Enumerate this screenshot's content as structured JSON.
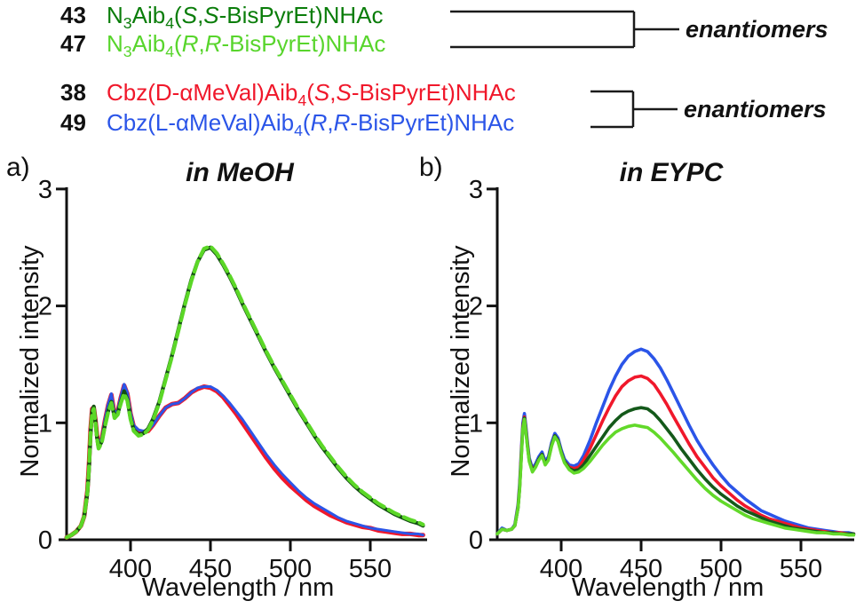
{
  "legend": {
    "rows": [
      {
        "number": "43",
        "color": "#0a7d0a",
        "segments": [
          {
            "t": "N"
          },
          {
            "t": "3",
            "sub": true
          },
          {
            "t": "Aib"
          },
          {
            "t": "4",
            "sub": true
          },
          {
            "t": "("
          },
          {
            "t": "S",
            "italic": true
          },
          {
            "t": ","
          },
          {
            "t": "S",
            "italic": true
          },
          {
            "t": "-BisPyrEt)NHAc"
          }
        ]
      },
      {
        "number": "47",
        "color": "#58d52c",
        "segments": [
          {
            "t": "N"
          },
          {
            "t": "3",
            "sub": true
          },
          {
            "t": "Aib"
          },
          {
            "t": "4",
            "sub": true
          },
          {
            "t": "("
          },
          {
            "t": "R",
            "italic": true
          },
          {
            "t": ","
          },
          {
            "t": "R",
            "italic": true
          },
          {
            "t": "-BisPyrEt)NHAc"
          }
        ]
      },
      {
        "number": "38",
        "color": "#f0182b",
        "segments": [
          {
            "t": "Cbz(D-"
          },
          {
            "t": "α"
          },
          {
            "t": "MeVal)Aib"
          },
          {
            "t": "4",
            "sub": true
          },
          {
            "t": "("
          },
          {
            "t": "S",
            "italic": true
          },
          {
            "t": ","
          },
          {
            "t": "S",
            "italic": true
          },
          {
            "t": "-BisPyrEt)NHAc"
          }
        ]
      },
      {
        "number": "49",
        "color": "#2b55e8",
        "segments": [
          {
            "t": "Cbz(L-"
          },
          {
            "t": "α"
          },
          {
            "t": "MeVal)Aib"
          },
          {
            "t": "4",
            "sub": true
          },
          {
            "t": "("
          },
          {
            "t": "R",
            "italic": true
          },
          {
            "t": ","
          },
          {
            "t": "R",
            "italic": true
          },
          {
            "t": "-BisPyrEt)NHAc"
          }
        ]
      }
    ],
    "enantiomers_top": "enantiomers",
    "enantiomers_bottom": "enantiomers"
  },
  "panels": {
    "a": {
      "letter": "a)"
    },
    "b": {
      "letter": "b)"
    }
  },
  "chart_data": [
    {
      "type": "line",
      "title": "in MeOH",
      "xlabel": "Wavelength / nm",
      "ylabel": "Normalized intensity",
      "xlim": [
        360,
        585
      ],
      "ylim": [
        0,
        3
      ],
      "xticks": [
        400,
        450,
        500,
        550
      ],
      "yticks": [
        0,
        1,
        2,
        3
      ],
      "x": [
        360,
        363,
        366,
        369,
        371,
        373,
        374,
        375,
        376,
        377,
        378,
        379,
        380,
        382,
        384,
        386,
        388,
        390,
        392,
        394,
        396,
        398,
        400,
        402,
        405,
        408,
        411,
        414,
        418,
        422,
        426,
        430,
        434,
        438,
        442,
        446,
        450,
        454,
        458,
        462,
        466,
        470,
        475,
        480,
        485,
        490,
        495,
        500,
        505,
        510,
        515,
        520,
        525,
        530,
        535,
        540,
        545,
        550,
        555,
        560,
        565,
        570,
        575,
        580,
        583
      ],
      "series": [
        {
          "name": "38",
          "compound": "Cbz(D-aMeVal)Aib4(S,S-BisPyrEt)NHAc",
          "color": "#f0182b",
          "width": 5,
          "dash": null,
          "values": [
            0.02,
            0.04,
            0.07,
            0.12,
            0.2,
            0.42,
            0.65,
            0.95,
            1.12,
            1.13,
            1.03,
            0.9,
            0.8,
            0.86,
            1.02,
            1.15,
            1.24,
            1.07,
            1.1,
            1.22,
            1.32,
            1.25,
            1.08,
            0.97,
            0.93,
            0.92,
            0.93,
            0.98,
            1.06,
            1.13,
            1.16,
            1.17,
            1.21,
            1.26,
            1.29,
            1.31,
            1.3,
            1.27,
            1.22,
            1.15,
            1.08,
            1.0,
            0.9,
            0.8,
            0.7,
            0.61,
            0.53,
            0.46,
            0.4,
            0.34,
            0.29,
            0.25,
            0.21,
            0.18,
            0.15,
            0.13,
            0.11,
            0.1,
            0.08,
            0.07,
            0.06,
            0.05,
            0.05,
            0.04,
            0.04
          ]
        },
        {
          "name": "49",
          "compound": "Cbz(L-aMeVal)Aib4(R,R-BisPyrEt)NHAc",
          "color": "#2b55e8",
          "width": 3,
          "dash": null,
          "values": [
            0.02,
            0.04,
            0.07,
            0.12,
            0.21,
            0.44,
            0.68,
            0.97,
            1.12,
            1.13,
            1.04,
            0.91,
            0.81,
            0.87,
            1.03,
            1.16,
            1.25,
            1.08,
            1.11,
            1.23,
            1.33,
            1.26,
            1.09,
            0.98,
            0.94,
            0.93,
            0.94,
            0.98,
            1.06,
            1.13,
            1.16,
            1.17,
            1.21,
            1.26,
            1.3,
            1.31,
            1.31,
            1.28,
            1.23,
            1.17,
            1.1,
            1.03,
            0.93,
            0.83,
            0.73,
            0.64,
            0.56,
            0.49,
            0.42,
            0.36,
            0.31,
            0.27,
            0.23,
            0.19,
            0.16,
            0.14,
            0.12,
            0.1,
            0.09,
            0.08,
            0.07,
            0.06,
            0.05,
            0.05,
            0.04
          ]
        },
        {
          "name": "43",
          "compound": "N3Aib4(S,S-BisPyrEt)NHAc",
          "color": "#134e13",
          "width": 4.3,
          "dash": null,
          "values": [
            0.02,
            0.04,
            0.07,
            0.12,
            0.2,
            0.4,
            0.6,
            0.9,
            1.1,
            1.14,
            1.02,
            0.88,
            0.79,
            0.84,
            0.98,
            1.1,
            1.18,
            1.05,
            1.08,
            1.18,
            1.27,
            1.2,
            1.04,
            0.94,
            0.9,
            0.91,
            0.95,
            1.03,
            1.18,
            1.38,
            1.58,
            1.8,
            2.02,
            2.22,
            2.38,
            2.48,
            2.5,
            2.44,
            2.35,
            2.25,
            2.14,
            2.02,
            1.88,
            1.74,
            1.6,
            1.47,
            1.35,
            1.23,
            1.11,
            1.0,
            0.89,
            0.79,
            0.7,
            0.61,
            0.53,
            0.46,
            0.4,
            0.35,
            0.3,
            0.26,
            0.22,
            0.19,
            0.16,
            0.14,
            0.12
          ]
        },
        {
          "name": "47",
          "compound": "N3Aib4(R,R-BisPyrEt)NHAc",
          "color": "#5bd727",
          "width": 4.3,
          "dash": "13 6",
          "values": [
            0.02,
            0.04,
            0.07,
            0.12,
            0.2,
            0.4,
            0.61,
            0.91,
            1.09,
            1.12,
            1.01,
            0.87,
            0.78,
            0.83,
            0.97,
            1.09,
            1.17,
            1.04,
            1.07,
            1.17,
            1.25,
            1.19,
            1.03,
            0.93,
            0.89,
            0.9,
            0.94,
            1.02,
            1.17,
            1.37,
            1.57,
            1.79,
            2.01,
            2.21,
            2.38,
            2.49,
            2.51,
            2.45,
            2.36,
            2.26,
            2.15,
            2.03,
            1.89,
            1.75,
            1.61,
            1.48,
            1.36,
            1.24,
            1.12,
            1.01,
            0.9,
            0.8,
            0.71,
            0.62,
            0.54,
            0.47,
            0.41,
            0.36,
            0.31,
            0.27,
            0.23,
            0.2,
            0.17,
            0.15,
            0.13
          ]
        }
      ]
    },
    {
      "type": "line",
      "title": "in EYPC",
      "xlabel": "Wavelength / nm",
      "ylabel": "Normalized intensity",
      "xlim": [
        360,
        583
      ],
      "ylim": [
        0,
        3
      ],
      "xticks": [
        400,
        450,
        500,
        550
      ],
      "yticks": [
        0,
        1,
        2,
        3
      ],
      "x": [
        360,
        363,
        366,
        369,
        371,
        373,
        374,
        375,
        376,
        377,
        378,
        379,
        380,
        382,
        384,
        386,
        388,
        390,
        392,
        394,
        396,
        398,
        400,
        402,
        405,
        408,
        411,
        414,
        418,
        422,
        426,
        430,
        434,
        438,
        442,
        446,
        450,
        454,
        458,
        462,
        466,
        470,
        475,
        480,
        485,
        490,
        495,
        500,
        505,
        510,
        515,
        520,
        525,
        530,
        535,
        540,
        545,
        550,
        555,
        560,
        565,
        570,
        575,
        580,
        583
      ],
      "series": [
        {
          "name": "49",
          "compound": "Cbz(L-aMeVal)Aib4(R,R-BisPyrEt)NHAc",
          "color": "#2b55e8",
          "width": 3.6,
          "dash": null,
          "values": [
            0.05,
            0.1,
            0.08,
            0.09,
            0.13,
            0.3,
            0.48,
            0.75,
            1.0,
            1.08,
            0.96,
            0.82,
            0.7,
            0.61,
            0.65,
            0.71,
            0.75,
            0.67,
            0.71,
            0.83,
            0.91,
            0.87,
            0.77,
            0.69,
            0.64,
            0.63,
            0.65,
            0.72,
            0.85,
            1.0,
            1.14,
            1.28,
            1.4,
            1.5,
            1.57,
            1.61,
            1.63,
            1.61,
            1.55,
            1.47,
            1.37,
            1.26,
            1.12,
            0.98,
            0.85,
            0.74,
            0.64,
            0.55,
            0.47,
            0.41,
            0.35,
            0.3,
            0.25,
            0.22,
            0.19,
            0.16,
            0.14,
            0.12,
            0.1,
            0.09,
            0.08,
            0.07,
            0.06,
            0.06,
            0.05
          ]
        },
        {
          "name": "38",
          "compound": "Cbz(D-aMeVal)Aib4(S,S-BisPyrEt)NHAc",
          "color": "#f0182b",
          "width": 3.6,
          "dash": null,
          "values": [
            0.05,
            0.09,
            0.08,
            0.09,
            0.12,
            0.28,
            0.45,
            0.72,
            0.97,
            1.05,
            0.93,
            0.8,
            0.68,
            0.6,
            0.63,
            0.69,
            0.73,
            0.65,
            0.69,
            0.81,
            0.89,
            0.85,
            0.75,
            0.67,
            0.62,
            0.61,
            0.62,
            0.68,
            0.78,
            0.9,
            1.02,
            1.13,
            1.23,
            1.31,
            1.36,
            1.39,
            1.4,
            1.38,
            1.33,
            1.25,
            1.16,
            1.06,
            0.94,
            0.82,
            0.71,
            0.62,
            0.53,
            0.46,
            0.4,
            0.34,
            0.29,
            0.25,
            0.21,
            0.18,
            0.16,
            0.14,
            0.12,
            0.1,
            0.09,
            0.08,
            0.07,
            0.06,
            0.06,
            0.05,
            0.05
          ]
        },
        {
          "name": "43",
          "compound": "N3Aib4(S,S-BisPyrEt)NHAc",
          "color": "#14591a",
          "width": 3.6,
          "dash": null,
          "values": [
            0.05,
            0.09,
            0.08,
            0.09,
            0.12,
            0.27,
            0.44,
            0.7,
            0.96,
            1.04,
            0.92,
            0.79,
            0.68,
            0.59,
            0.63,
            0.69,
            0.73,
            0.65,
            0.69,
            0.81,
            0.89,
            0.85,
            0.75,
            0.67,
            0.61,
            0.59,
            0.6,
            0.64,
            0.72,
            0.8,
            0.88,
            0.96,
            1.02,
            1.07,
            1.1,
            1.12,
            1.13,
            1.12,
            1.08,
            1.02,
            0.95,
            0.88,
            0.78,
            0.69,
            0.6,
            0.52,
            0.45,
            0.39,
            0.34,
            0.29,
            0.25,
            0.22,
            0.19,
            0.16,
            0.14,
            0.12,
            0.1,
            0.09,
            0.08,
            0.07,
            0.06,
            0.06,
            0.05,
            0.05,
            0.05
          ]
        },
        {
          "name": "47",
          "compound": "N3Aib4(R,R-BisPyrEt)NHAc",
          "color": "#62d92a",
          "width": 3.6,
          "dash": null,
          "values": [
            0.05,
            0.09,
            0.08,
            0.09,
            0.12,
            0.27,
            0.43,
            0.69,
            0.95,
            1.03,
            0.91,
            0.78,
            0.67,
            0.58,
            0.62,
            0.68,
            0.72,
            0.64,
            0.68,
            0.8,
            0.88,
            0.84,
            0.74,
            0.66,
            0.6,
            0.57,
            0.58,
            0.61,
            0.67,
            0.74,
            0.81,
            0.87,
            0.92,
            0.95,
            0.97,
            0.98,
            0.97,
            0.96,
            0.92,
            0.87,
            0.81,
            0.75,
            0.67,
            0.59,
            0.51,
            0.44,
            0.38,
            0.33,
            0.29,
            0.25,
            0.21,
            0.18,
            0.16,
            0.14,
            0.12,
            0.1,
            0.09,
            0.08,
            0.07,
            0.06,
            0.06,
            0.05,
            0.05,
            0.04,
            0.04
          ]
        }
      ]
    }
  ]
}
